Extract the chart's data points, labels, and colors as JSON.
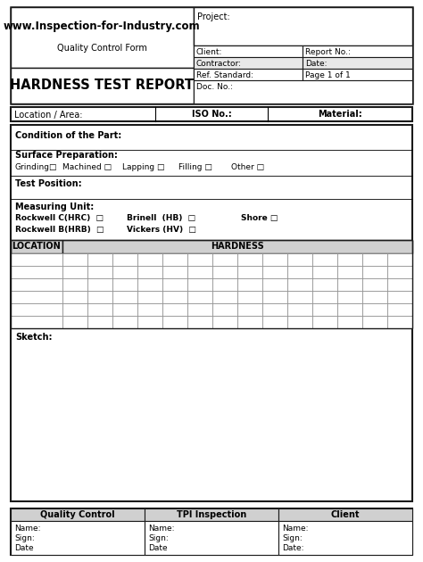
{
  "title": "HARDNESS TEST REPORT",
  "website": "www.Inspection-for-Industry.com",
  "subtitle": "Quality Control Form",
  "project_label": "Project:",
  "client_label": "Client:",
  "contractor_label": "Contractor:",
  "ref_standard_label": "Ref. Standard:",
  "doc_no_label": "Doc. No.:",
  "report_no_label": "Report No.:",
  "date_label": "Date:",
  "page_label": "Page 1 of 1",
  "location_label": "Location / Area:",
  "iso_label": "ISO No.:",
  "material_label": "Material:",
  "condition_label": "Condition of the Part:",
  "surface_label": "Surface Preparation:",
  "surface_options": [
    "Grinding□",
    "Machined □",
    "Lapping □",
    "Filling □",
    "Other □"
  ],
  "surface_x": [
    5,
    58,
    125,
    188,
    247
  ],
  "test_position_label": "Test Position:",
  "measuring_unit_label": "Measuring Unit:",
  "rockwell_c": "Rockwell C(HRC)  □",
  "brinell": "Brinell  (HB)  □",
  "shore": "Shore □",
  "rockwell_b": "Rockwell B(HRB)  □",
  "vickers": "Vickers (HV)  □",
  "table_col1": "LOCATION",
  "table_col2": "HARDNESS",
  "sketch_label": "Sketch:",
  "footer_cols": [
    "Quality Control",
    "TPI Inspection",
    "Client"
  ],
  "footer_row1": "Name:",
  "footer_row2": "Sign:",
  "footer_row3_col12": "Date",
  "footer_row3_col3": "Date:",
  "bg_color": "#ffffff",
  "border_color": "#1a1a1a",
  "table_header_bg": "#d0d0d0",
  "row_gray": "#e8e8e8",
  "num_hardness_cols": 14,
  "num_data_rows": 6
}
